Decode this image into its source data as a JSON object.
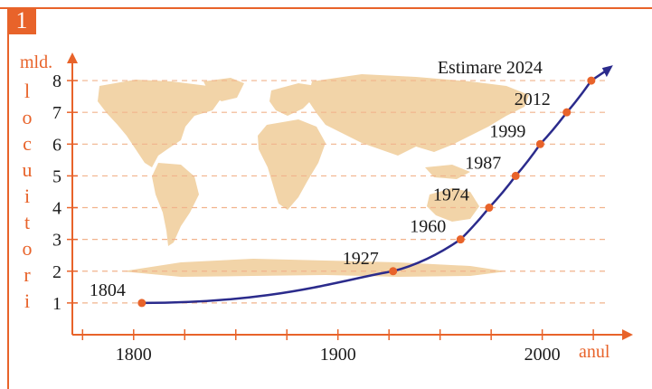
{
  "figure": {
    "number": "1"
  },
  "colors": {
    "accent": "#e8632a",
    "curve": "#2b2b8c",
    "land": "#f2d4a8",
    "grid": "#f1b38c",
    "point": "#e8632a"
  },
  "chart_data": {
    "type": "line",
    "title": "",
    "ylabel_unit": "mld.",
    "ylabel": "locuitori",
    "xlabel": "anul",
    "xlim": [
      1770,
      2040
    ],
    "ylim": [
      0,
      8.6
    ],
    "x_ticks": [
      1800,
      1900,
      2000
    ],
    "y_ticks": [
      1,
      2,
      3,
      4,
      5,
      6,
      7,
      8
    ],
    "grid": true,
    "background": "world-map",
    "series": [
      {
        "points": [
          {
            "x": 1804,
            "y": 1,
            "label": "1804"
          },
          {
            "x": 1927,
            "y": 2,
            "label": "1927"
          },
          {
            "x": 1960,
            "y": 3,
            "label": "1960"
          },
          {
            "x": 1974,
            "y": 4,
            "label": "1974"
          },
          {
            "x": 1987,
            "y": 5,
            "label": "1987"
          },
          {
            "x": 1999,
            "y": 6,
            "label": "1999"
          },
          {
            "x": 2012,
            "y": 7,
            "label": "2012"
          },
          {
            "x": 2024,
            "y": 8,
            "label": "Estimare 2024"
          }
        ]
      }
    ]
  }
}
